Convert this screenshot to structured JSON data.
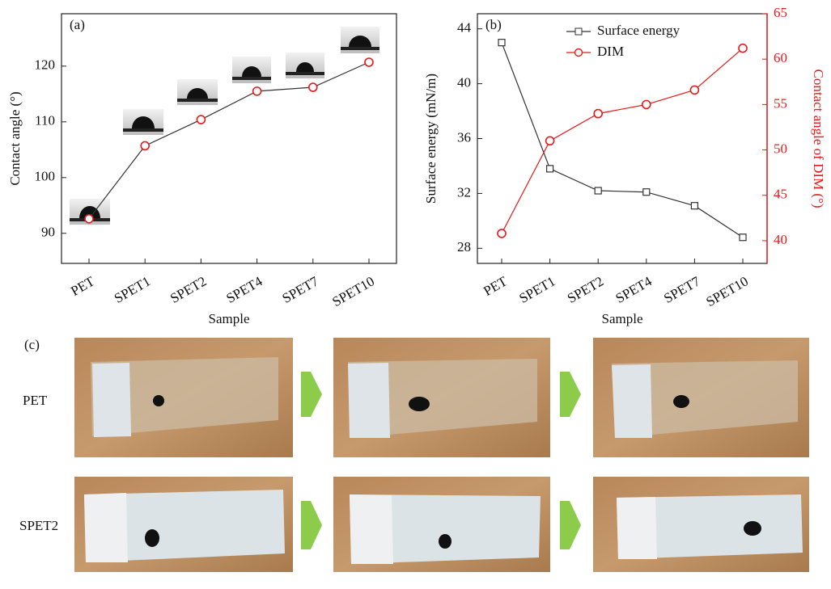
{
  "chart_data": [
    {
      "type": "line",
      "label": "(a)",
      "xlabel": "Sample",
      "ylabel": "Contact angle (°)",
      "categories": [
        "PET",
        "SPET1",
        "SPET2",
        "SPET4",
        "SPET7",
        "SPET10"
      ],
      "values": [
        92.6,
        105.7,
        110.4,
        115.5,
        116.2,
        120.7
      ],
      "color": "#e8191b",
      "line_color": "#333333",
      "marker": "circle",
      "ylim": [
        84.6,
        129.4
      ],
      "yticks": [
        90,
        100,
        110,
        120
      ],
      "grid": false
    },
    {
      "type": "line",
      "label": "(b)",
      "xlabel": "Sample",
      "ylabel": "Surface energy (mN/m)",
      "y2label": "Contact angle of DIM (°)",
      "categories": [
        "PET",
        "SPET1",
        "SPET2",
        "SPET4",
        "SPET7",
        "SPET10"
      ],
      "series": [
        {
          "name": "Surface energy",
          "color": "#333333",
          "marker": "square",
          "values": [
            43.0,
            33.8,
            32.2,
            32.1,
            31.1,
            28.8
          ]
        },
        {
          "name": "DIM",
          "color": "#e8191b",
          "marker": "circle",
          "axis": "y2",
          "values": [
            40.8,
            51.0,
            54.0,
            55.0,
            56.6,
            61.2
          ]
        }
      ],
      "ylim": [
        26.9,
        45.1
      ],
      "yticks": [
        28,
        32,
        36,
        40,
        44
      ],
      "y2lim": [
        37.5,
        65
      ],
      "y2ticks": [
        40,
        45,
        50,
        55,
        60,
        65
      ],
      "y2color": "#e8191b",
      "legend": "top",
      "grid": false
    }
  ],
  "photos": {
    "label": "(c)",
    "rows": [
      "PET",
      "SPET2"
    ]
  }
}
